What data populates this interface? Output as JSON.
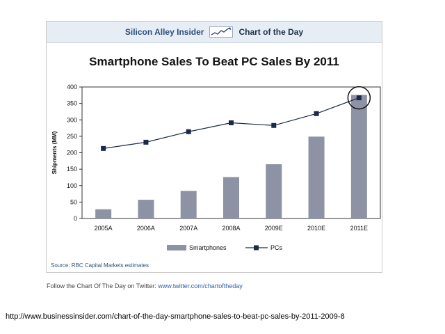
{
  "header": {
    "brand": "Silicon Alley Insider",
    "section": "Chart of the Day",
    "spark_icon": "rising-line-chart-icon"
  },
  "chart_data": {
    "type": "bar",
    "title": "Smartphone Sales To Beat PC Sales By 2011",
    "xlabel": "",
    "ylabel": "Shipments (MM)",
    "categories": [
      "2005A",
      "2006A",
      "2007A",
      "2008A",
      "2009E",
      "2010E",
      "2011E"
    ],
    "ylim": [
      0,
      400
    ],
    "yticks": [
      0,
      50,
      100,
      150,
      200,
      250,
      300,
      350,
      400
    ],
    "grid": false,
    "legend": "bottom",
    "series": [
      {
        "name": "Smartphones",
        "kind": "bar",
        "color": "#8d93a4",
        "values": [
          28,
          57,
          84,
          126,
          165,
          249,
          376
        ]
      },
      {
        "name": "PCs",
        "kind": "line",
        "color": "#1b2a4a",
        "values": [
          213,
          232,
          264,
          291,
          283,
          319,
          367
        ]
      }
    ],
    "annotation": "circle around 2011E"
  },
  "source": "Source: RBC Capital Markets estimates",
  "footer": {
    "follow_text": "Follow the Chart Of The Day on Twitter: ",
    "follow_link": "www.twitter.com/chartoftheday",
    "url": "http://www.businessinsider.com/chart-of-the-day-smartphone-sales-to-beat-pc-sales-by-2011-2009-8"
  }
}
